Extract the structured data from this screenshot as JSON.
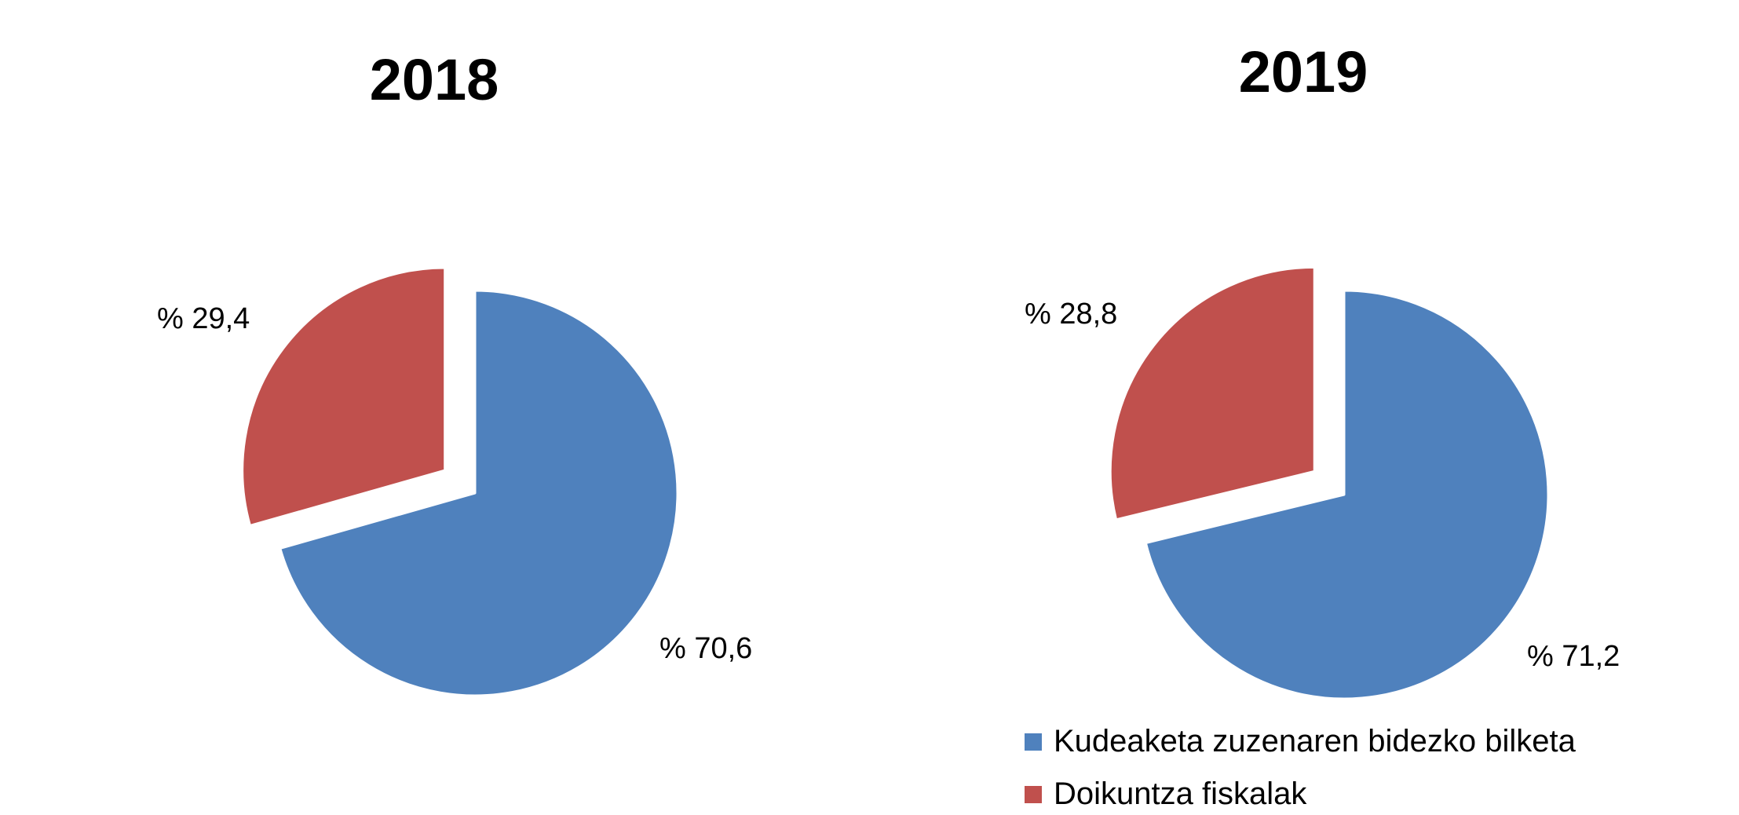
{
  "chart_data": [
    {
      "type": "pie",
      "title": "2018",
      "slices": [
        {
          "name": "Kudeaketa zuzenaren bidezko bilketa",
          "value": 70.6,
          "label": "% 70,6",
          "color": "#4F81BD"
        },
        {
          "name": "Doikuntza fiskalak",
          "value": 29.4,
          "label": "% 29,4",
          "color": "#C0504D"
        }
      ]
    },
    {
      "type": "pie",
      "title": "2019",
      "slices": [
        {
          "name": "Kudeaketa zuzenaren bidezko bilketa",
          "value": 71.2,
          "label": "% 71,2",
          "color": "#4F81BD"
        },
        {
          "name": "Doikuntza fiskalak",
          "value": 28.8,
          "label": "% 28,8",
          "color": "#C0504D"
        }
      ]
    }
  ],
  "legend": {
    "items": [
      {
        "label": "Kudeaketa zuzenaren bidezko bilketa",
        "color": "#4F81BD"
      },
      {
        "label": "Doikuntza fiskalak",
        "color": "#C0504D"
      }
    ]
  }
}
